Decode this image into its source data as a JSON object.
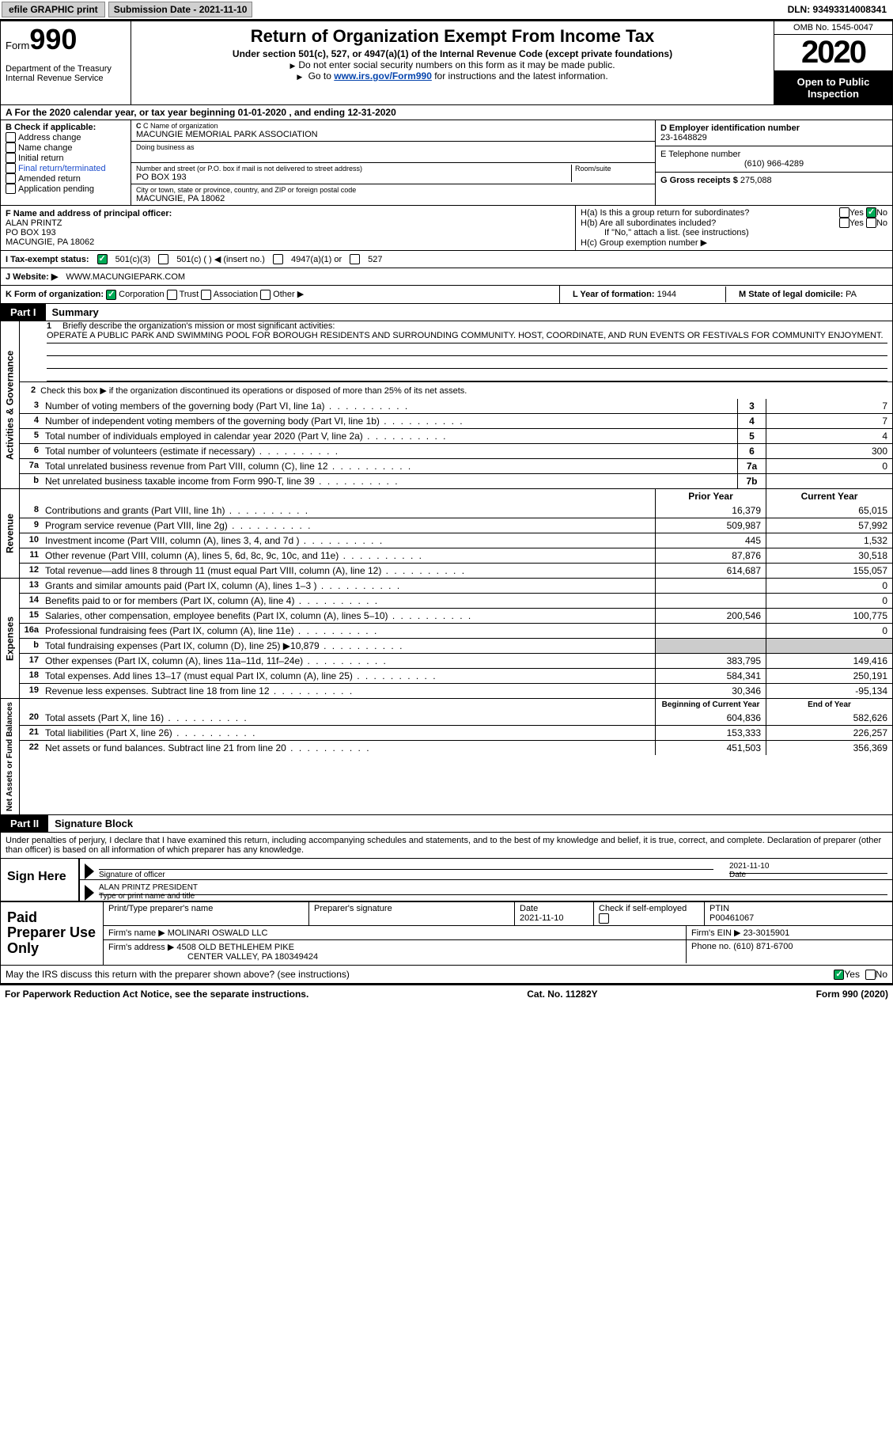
{
  "topbar": {
    "efile": "efile GRAPHIC print",
    "submission": "Submission Date - 2021-11-10",
    "dln": "DLN: 93493314008341"
  },
  "header": {
    "form_word": "Form",
    "form_num": "990",
    "dept1": "Department of the Treasury",
    "dept2": "Internal Revenue Service",
    "title": "Return of Organization Exempt From Income Tax",
    "subtitle": "Under section 501(c), 527, or 4947(a)(1) of the Internal Revenue Code (except private foundations)",
    "note1": "Do not enter social security numbers on this form as it may be made public.",
    "note2_pre": "Go to ",
    "note2_link": "www.irs.gov/Form990",
    "note2_post": " for instructions and the latest information.",
    "omb": "OMB No. 1545-0047",
    "year": "2020",
    "open": "Open to Public Inspection"
  },
  "period": "A For the 2020 calendar year, or tax year beginning 01-01-2020    , and ending 12-31-2020",
  "box_b": {
    "label": "B Check if applicable:",
    "opts": [
      "Address change",
      "Name change",
      "Initial return",
      "Final return/terminated",
      "Amended return",
      "Application pending"
    ]
  },
  "box_c": {
    "label": "C Name of organization",
    "name": "MACUNGIE MEMORIAL PARK ASSOCIATION",
    "dba_label": "Doing business as",
    "street_label": "Number and street (or P.O. box if mail is not delivered to street address)",
    "room_label": "Room/suite",
    "street": "PO BOX 193",
    "city_label": "City or town, state or province, country, and ZIP or foreign postal code",
    "city": "MACUNGIE, PA  18062"
  },
  "box_d": {
    "label": "D Employer identification number",
    "value": "23-1648829"
  },
  "box_e": {
    "label": "E Telephone number",
    "value": "(610) 966-4289"
  },
  "box_g": {
    "label": "G Gross receipts $",
    "value": "275,088"
  },
  "box_f": {
    "label": "F  Name and address of principal officer:",
    "name": "ALAN PRINTZ",
    "addr1": "PO BOX 193",
    "addr2": "MACUNGIE, PA  18062"
  },
  "box_h": {
    "a_label": "H(a)  Is this a group return for subordinates?",
    "b_label": "H(b)  Are all subordinates included?",
    "b_note": "If \"No,\" attach a list. (see instructions)",
    "c_label": "H(c)  Group exemption number ▶",
    "yes": "Yes",
    "no": "No"
  },
  "box_i": {
    "label": "I   Tax-exempt status:",
    "o1": "501(c)(3)",
    "o2": "501(c) (  ) ◀ (insert no.)",
    "o3": "4947(a)(1) or",
    "o4": "527"
  },
  "box_j": {
    "label": "J   Website: ▶",
    "value": "WWW.MACUNGIEPARK.COM"
  },
  "box_k": {
    "label": "K Form of organization:",
    "o1": "Corporation",
    "o2": "Trust",
    "o3": "Association",
    "o4": "Other ▶"
  },
  "box_l": {
    "label": "L Year of formation:",
    "value": "1944"
  },
  "box_m": {
    "label": "M State of legal domicile:",
    "value": "PA"
  },
  "part1": {
    "tag": "Part I",
    "title": "Summary"
  },
  "gov": {
    "section_label": "Activities & Governance",
    "l1": "Briefly describe the organization's mission or most significant activities:",
    "mission": "OPERATE A PUBLIC PARK AND SWIMMING POOL FOR BOROUGH RESIDENTS AND SURROUNDING COMMUNITY. HOST, COORDINATE, AND RUN EVENTS OR FESTIVALS FOR COMMUNITY ENJOYMENT.",
    "l2": "Check this box ▶        if the organization discontinued its operations or disposed of more than 25% of its net assets.",
    "lines": [
      {
        "n": "3",
        "d": "Number of voting members of the governing body (Part VI, line 1a)",
        "box": "3",
        "v": "7"
      },
      {
        "n": "4",
        "d": "Number of independent voting members of the governing body (Part VI, line 1b)",
        "box": "4",
        "v": "7"
      },
      {
        "n": "5",
        "d": "Total number of individuals employed in calendar year 2020 (Part V, line 2a)",
        "box": "5",
        "v": "4"
      },
      {
        "n": "6",
        "d": "Total number of volunteers (estimate if necessary)",
        "box": "6",
        "v": "300"
      },
      {
        "n": "7a",
        "d": "Total unrelated business revenue from Part VIII, column (C), line 12",
        "box": "7a",
        "v": "0"
      },
      {
        "n": "b",
        "d": "Net unrelated business taxable income from Form 990-T, line 39",
        "box": "7b",
        "v": ""
      }
    ]
  },
  "rev": {
    "section_label": "Revenue",
    "hdr_prior": "Prior Year",
    "hdr_current": "Current Year",
    "lines": [
      {
        "n": "8",
        "d": "Contributions and grants (Part VIII, line 1h)",
        "p": "16,379",
        "c": "65,015"
      },
      {
        "n": "9",
        "d": "Program service revenue (Part VIII, line 2g)",
        "p": "509,987",
        "c": "57,992"
      },
      {
        "n": "10",
        "d": "Investment income (Part VIII, column (A), lines 3, 4, and 7d )",
        "p": "445",
        "c": "1,532"
      },
      {
        "n": "11",
        "d": "Other revenue (Part VIII, column (A), lines 5, 6d, 8c, 9c, 10c, and 11e)",
        "p": "87,876",
        "c": "30,518"
      },
      {
        "n": "12",
        "d": "Total revenue—add lines 8 through 11 (must equal Part VIII, column (A), line 12)",
        "p": "614,687",
        "c": "155,057"
      }
    ]
  },
  "exp": {
    "section_label": "Expenses",
    "lines": [
      {
        "n": "13",
        "d": "Grants and similar amounts paid (Part IX, column (A), lines 1–3 )",
        "p": "",
        "c": "0"
      },
      {
        "n": "14",
        "d": "Benefits paid to or for members (Part IX, column (A), line 4)",
        "p": "",
        "c": "0"
      },
      {
        "n": "15",
        "d": "Salaries, other compensation, employee benefits (Part IX, column (A), lines 5–10)",
        "p": "200,546",
        "c": "100,775"
      },
      {
        "n": "16a",
        "d": "Professional fundraising fees (Part IX, column (A), line 11e)",
        "p": "",
        "c": "0"
      },
      {
        "n": "b",
        "d": "Total fundraising expenses (Part IX, column (D), line 25) ▶10,879",
        "p": "SHADE",
        "c": "SHADE"
      },
      {
        "n": "17",
        "d": "Other expenses (Part IX, column (A), lines 11a–11d, 11f–24e)",
        "p": "383,795",
        "c": "149,416"
      },
      {
        "n": "18",
        "d": "Total expenses. Add lines 13–17 (must equal Part IX, column (A), line 25)",
        "p": "584,341",
        "c": "250,191"
      },
      {
        "n": "19",
        "d": "Revenue less expenses. Subtract line 18 from line 12",
        "p": "30,346",
        "c": "-95,134"
      }
    ]
  },
  "net": {
    "section_label": "Net Assets or Fund Balances",
    "hdr_begin": "Beginning of Current Year",
    "hdr_end": "End of Year",
    "lines": [
      {
        "n": "20",
        "d": "Total assets (Part X, line 16)",
        "p": "604,836",
        "c": "582,626"
      },
      {
        "n": "21",
        "d": "Total liabilities (Part X, line 26)",
        "p": "153,333",
        "c": "226,257"
      },
      {
        "n": "22",
        "d": "Net assets or fund balances. Subtract line 21 from line 20",
        "p": "451,503",
        "c": "356,369"
      }
    ]
  },
  "part2": {
    "tag": "Part II",
    "title": "Signature Block"
  },
  "sig": {
    "decl": "Under penalties of perjury, I declare that I have examined this return, including accompanying schedules and statements, and to the best of my knowledge and belief, it is true, correct, and complete. Declaration of preparer (other than officer) is based on all information of which preparer has any knowledge.",
    "sign_here": "Sign Here",
    "sig_officer": "Signature of officer",
    "date": "Date",
    "date_val": "2021-11-10",
    "name": "ALAN PRINTZ  PRESIDENT",
    "name_lbl": "Type or print name and title"
  },
  "prep": {
    "label": "Paid Preparer Use Only",
    "h1": "Print/Type preparer's name",
    "h2": "Preparer's signature",
    "h3_l": "Date",
    "h3_v": "2021-11-10",
    "h4_l": "Check        if self-employed",
    "h5_l": "PTIN",
    "h5_v": "P00461067",
    "firm_l": "Firm's name    ▶",
    "firm_v": "MOLINARI OSWALD LLC",
    "ein_l": "Firm's EIN ▶",
    "ein_v": "23-3015901",
    "addr_l": "Firm's address ▶",
    "addr_v1": "4508 OLD BETHLEHEM PIKE",
    "addr_v2": "CENTER VALLEY, PA  180349424",
    "phone_l": "Phone no.",
    "phone_v": "(610) 871-6700"
  },
  "discuss": {
    "q": "May the IRS discuss this return with the preparer shown above? (see instructions)",
    "yes": "Yes",
    "no": "No"
  },
  "footer": {
    "left": "For Paperwork Reduction Act Notice, see the separate instructions.",
    "mid": "Cat. No. 11282Y",
    "right": "Form 990 (2020)"
  }
}
